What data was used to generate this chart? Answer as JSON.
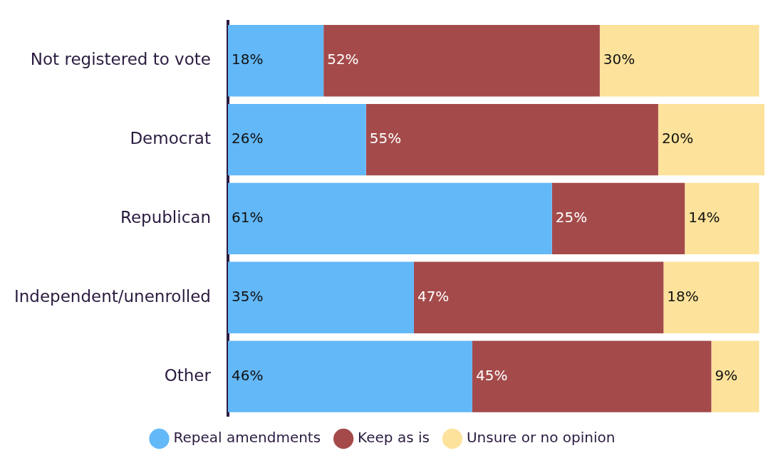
{
  "chart_data": {
    "type": "bar",
    "orientation": "horizontal",
    "stacked": true,
    "legend": "bottom",
    "tick_labels": "y",
    "categories": [
      "Not registered to vote",
      "Democrat",
      "Republican",
      "Independent/unenrolled",
      "Other"
    ],
    "series": [
      {
        "name": "Repeal amendments",
        "color": "#63b8f8",
        "values": [
          18,
          26,
          61,
          35,
          46
        ],
        "value_labels": [
          "18%",
          "26%",
          "61%",
          "35%",
          "46%"
        ]
      },
      {
        "name": "Keep as is",
        "color": "#a44a4a",
        "values": [
          52,
          55,
          25,
          47,
          45
        ],
        "value_labels": [
          "52%",
          "55%",
          "25%",
          "47%",
          "45%"
        ]
      },
      {
        "name": "Unsure or no opinion",
        "color": "#fce29b",
        "values": [
          30,
          20,
          14,
          18,
          9
        ],
        "value_labels": [
          "30%",
          "20%",
          "14%",
          "18%",
          "9%"
        ]
      }
    ]
  }
}
